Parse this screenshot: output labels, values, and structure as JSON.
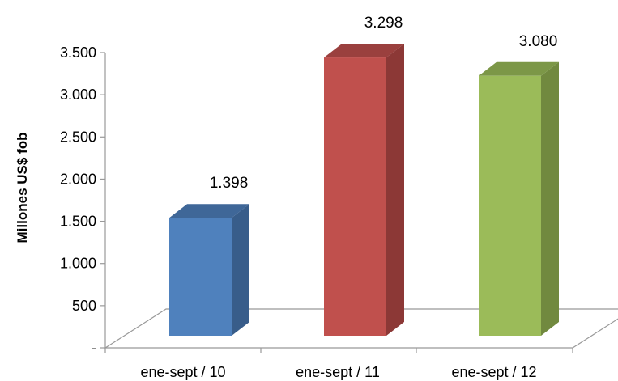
{
  "chart_data": {
    "type": "bar",
    "title": "",
    "xlabel": "",
    "ylabel": "Millones US$ fob",
    "ylim": [
      0,
      3500
    ],
    "y_ticks": [
      0,
      500,
      1000,
      1500,
      2000,
      2500,
      3000,
      3500
    ],
    "y_tick_labels": [
      "-",
      "500",
      "1.000",
      "1.500",
      "2.000",
      "2.500",
      "3.000",
      "3.500"
    ],
    "categories": [
      "ene-sept / 10",
      "ene-sept / 11",
      "ene-sept / 12"
    ],
    "values": [
      1398,
      3298,
      3080
    ],
    "data_labels": [
      "1.398",
      "3.298",
      "3.080"
    ],
    "bar_colors": [
      "#4F81BD",
      "#C0504D",
      "#9BBB59"
    ],
    "bar_side_colors": [
      "#385D8A",
      "#8C3836",
      "#71893F"
    ],
    "bar_top_colors": [
      "#3F6798",
      "#9A403E",
      "#7C9747"
    ],
    "grid": false,
    "style": "3d-column"
  }
}
